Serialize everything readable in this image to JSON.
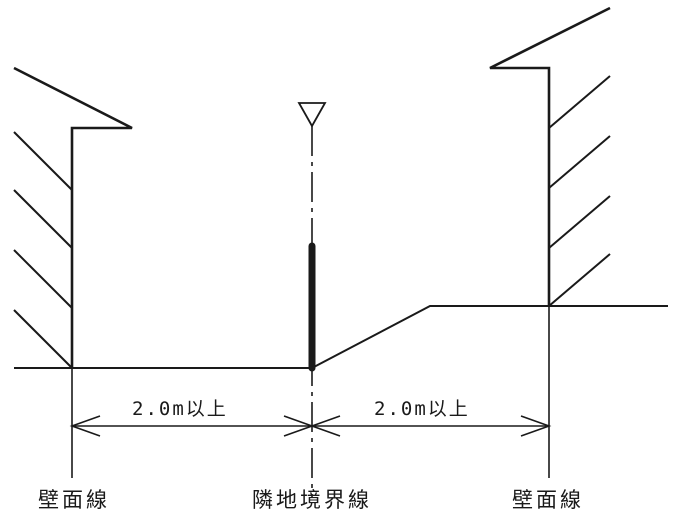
{
  "labels": {
    "wall_left": "壁面線",
    "boundary": "隣地境界線",
    "wall_right": "壁面線"
  },
  "dimensions": {
    "left": "2.0m以上",
    "right": "2.0m以上"
  },
  "colors": {
    "line": "#1a1a1a",
    "background": "#ffffff"
  }
}
